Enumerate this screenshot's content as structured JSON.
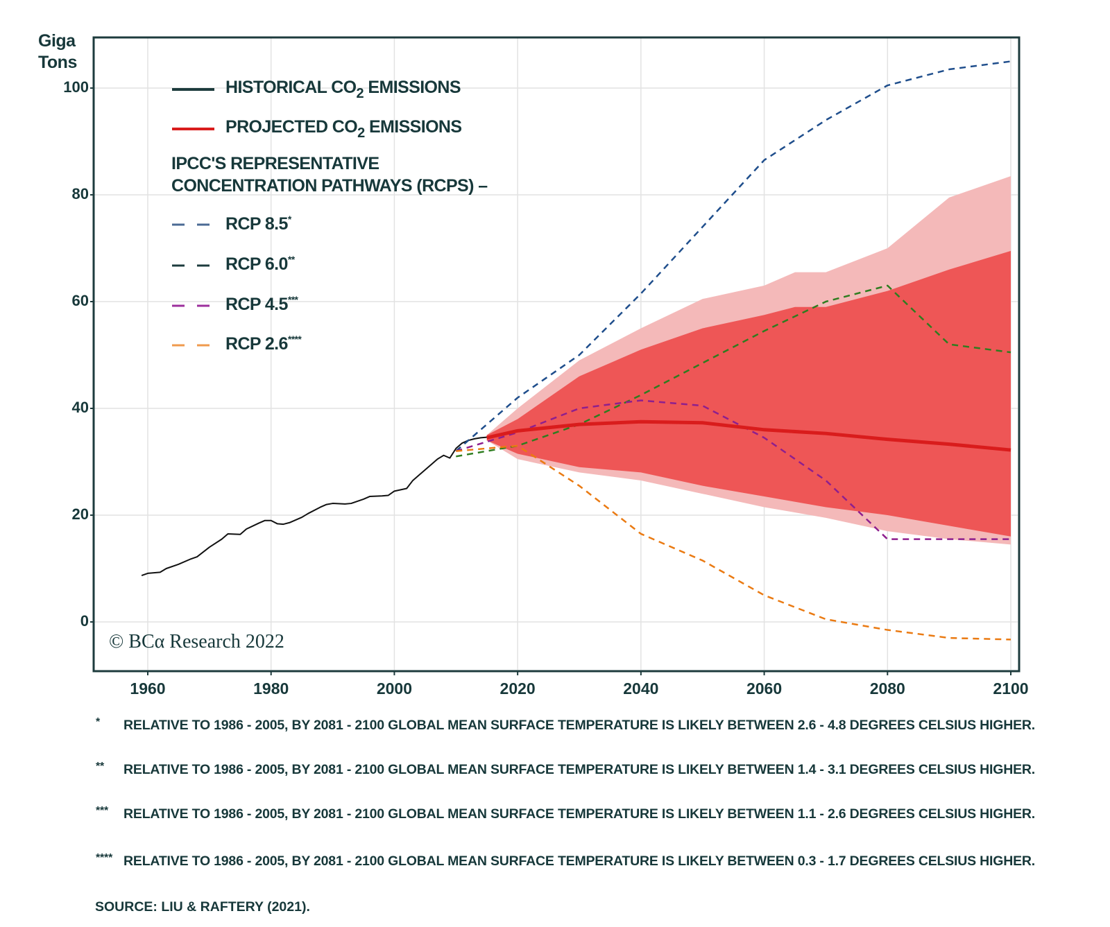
{
  "chart_data": {
    "type": "line",
    "title": "",
    "ylabel": "Giga Tons",
    "xlabel": "",
    "xlim": [
      1951,
      2101
    ],
    "ylim": [
      -9.2,
      109.6
    ],
    "x_ticks": [
      1960,
      1980,
      2000,
      2020,
      2040,
      2060,
      2080,
      2100
    ],
    "y_ticks": [
      0,
      20,
      40,
      60,
      80,
      100
    ],
    "grid": true,
    "legend_position": "top-left",
    "legend": {
      "historical": {
        "label_pre": "HISTORICAL CO",
        "sub": "2",
        "label_post": " EMISSIONS"
      },
      "projected": {
        "label_pre": "PROJECTED CO",
        "sub": "2",
        "label_post": " EMISSIONS"
      },
      "rcp_heading_1": "IPCC'S REPRESENTATIVE",
      "rcp_heading_2": "CONCENTRATION PATHWAYS (RCPS) –",
      "rcps": [
        {
          "label": "RCP 8.5",
          "mark": "*"
        },
        {
          "label": "RCP 6.0",
          "mark": "**"
        },
        {
          "label": "RCP 4.5",
          "mark": "***"
        },
        {
          "label": "RCP 2.6",
          "mark": "****"
        }
      ]
    },
    "series": [
      {
        "name": "Historical CO2 emissions",
        "color": "#111111",
        "style": "solid",
        "x": [
          1959,
          1960,
          1962,
          1963,
          1965,
          1967,
          1968,
          1970,
          1972,
          1973,
          1975,
          1976,
          1978,
          1979,
          1980,
          1981,
          1982,
          1983,
          1985,
          1986,
          1988,
          1989,
          1990,
          1992,
          1993,
          1995,
          1996,
          1998,
          1999,
          2000,
          2002,
          2003,
          2004,
          2006,
          2007,
          2008,
          2009,
          2010,
          2011,
          2012,
          2013,
          2014,
          2015
        ],
        "y": [
          8.7,
          9.1,
          9.3,
          10.0,
          10.8,
          11.8,
          12.2,
          14.0,
          15.5,
          16.5,
          16.4,
          17.4,
          18.5,
          19.0,
          19.0,
          18.4,
          18.3,
          18.6,
          19.6,
          20.3,
          21.5,
          22.0,
          22.2,
          22.1,
          22.2,
          23.0,
          23.5,
          23.6,
          23.7,
          24.5,
          25.0,
          26.5,
          27.5,
          29.5,
          30.5,
          31.2,
          30.7,
          32.5,
          33.5,
          34.0,
          34.3,
          34.5,
          34.6
        ]
      },
      {
        "name": "Projected CO2 emissions (median)",
        "color": "#d91c1c",
        "style": "solid",
        "x": [
          2015,
          2020,
          2030,
          2040,
          2050,
          2060,
          2070,
          2080,
          2090,
          2100
        ],
        "y": [
          34.5,
          35.8,
          37.0,
          37.5,
          37.3,
          36.0,
          35.3,
          34.2,
          33.3,
          32.2
        ]
      },
      {
        "name": "RCP 8.5",
        "color": "#1f4e8c",
        "style": "dashed",
        "x": [
          2010,
          2020,
          2030,
          2040,
          2050,
          2060,
          2070,
          2080,
          2090,
          2100
        ],
        "y": [
          32,
          42,
          50,
          61.5,
          74,
          86.5,
          94,
          100.5,
          103.5,
          105
        ]
      },
      {
        "name": "RCP 6.0",
        "color": "#2e7d1f",
        "style": "dashed",
        "x": [
          2010,
          2020,
          2030,
          2040,
          2050,
          2060,
          2070,
          2080,
          2090,
          2100
        ],
        "y": [
          31,
          33,
          37,
          42.5,
          48.5,
          54.5,
          60,
          63,
          52,
          50.5
        ]
      },
      {
        "name": "RCP 4.5",
        "color": "#8e1f8e",
        "style": "dashed",
        "x": [
          2010,
          2020,
          2030,
          2040,
          2050,
          2060,
          2070,
          2080,
          2090,
          2100
        ],
        "y": [
          32,
          35.5,
          40,
          41.5,
          40.5,
          34.5,
          26.5,
          15.5,
          15.5,
          15.5
        ]
      },
      {
        "name": "RCP 2.6",
        "color": "#ea7a12",
        "style": "dashed",
        "x": [
          2010,
          2020,
          2030,
          2040,
          2050,
          2060,
          2070,
          2080,
          2090,
          2100
        ],
        "y": [
          32,
          33,
          25.5,
          16.5,
          11.5,
          5,
          0.5,
          -1.5,
          -3,
          -3.3
        ]
      }
    ],
    "bands": [
      {
        "name": "Projection outer interval",
        "color": "#f4b9b9",
        "x": [
          2015,
          2020,
          2030,
          2040,
          2050,
          2060,
          2065,
          2070,
          2080,
          2090,
          2100
        ],
        "upper": [
          35,
          40,
          49,
          55,
          60.5,
          63,
          65.5,
          65.5,
          70,
          79.5,
          83.5
        ],
        "lower": [
          34,
          30.5,
          28,
          26.5,
          24,
          21.5,
          20.5,
          19.5,
          17,
          15.5,
          14.5
        ]
      },
      {
        "name": "Projection inner interval",
        "color": "#ee5656",
        "x": [
          2015,
          2020,
          2030,
          2040,
          2050,
          2060,
          2065,
          2070,
          2080,
          2090,
          2100
        ],
        "upper": [
          35,
          38,
          46,
          51,
          55,
          57.5,
          59,
          59,
          62,
          66,
          69.5
        ],
        "lower": [
          34,
          31.5,
          29,
          28,
          25.5,
          23.5,
          22.5,
          21.5,
          20,
          18,
          16
        ]
      }
    ]
  },
  "watermark": "© BCα Research 2022",
  "unit_line1": "Giga",
  "unit_line2": "Tons",
  "footnotes": [
    {
      "mark": "*",
      "text": "RELATIVE TO 1986 - 2005, BY 2081 - 2100 GLOBAL MEAN SURFACE TEMPERATURE IS LIKELY BETWEEN 2.6 - 4.8 DEGREES CELSIUS HIGHER."
    },
    {
      "mark": "**",
      "text": "RELATIVE TO 1986 - 2005, BY 2081 - 2100 GLOBAL MEAN SURFACE TEMPERATURE IS LIKELY BETWEEN 1.4 - 3.1 DEGREES CELSIUS HIGHER."
    },
    {
      "mark": "***",
      "text": "RELATIVE TO 1986 - 2005, BY 2081 - 2100 GLOBAL MEAN SURFACE TEMPERATURE IS LIKELY BETWEEN 1.1 - 2.6 DEGREES CELSIUS HIGHER."
    },
    {
      "mark": "****",
      "text": "RELATIVE TO 1986 - 2005, BY 2081 - 2100 GLOBAL MEAN SURFACE TEMPERATURE IS LIKELY BETWEEN 0.3 - 1.7 DEGREES CELSIUS HIGHER."
    }
  ],
  "source": "SOURCE: LIU & RAFTERY (2021)."
}
